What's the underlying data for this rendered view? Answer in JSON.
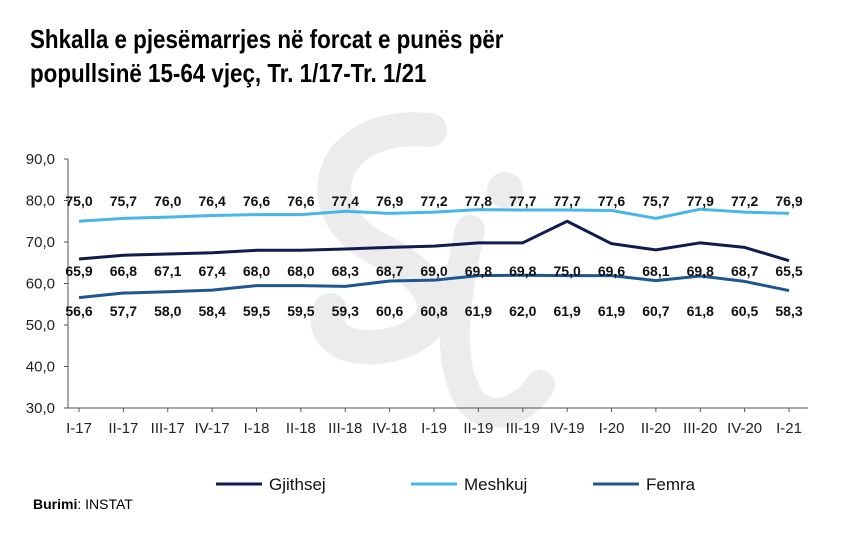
{
  "title_line1": "Shkalla e pjesëmarrjes në forcat e punës për",
  "title_line2": "popullsinë 15-64 vjeç, Tr. 1/17-Tr. 1/21",
  "source_label": "Burimi",
  "source_value": ": INSTAT",
  "chart_data": {
    "type": "line",
    "categories": [
      "I-17",
      "II-17",
      "III-17",
      "IV-17",
      "I-18",
      "II-18",
      "III-18",
      "IV-18",
      "I-19",
      "II-19",
      "III-19",
      "IV-19",
      "I-20",
      "II-20",
      "III-20",
      "IV-20",
      "I-21"
    ],
    "y_ticks": [
      "30,0",
      "40,0",
      "50,0",
      "60,0",
      "70,0",
      "80,0",
      "90,0"
    ],
    "ylim": [
      30,
      90
    ],
    "grid": false,
    "legend_position": "bottom",
    "series": [
      {
        "name": "Gjithsej",
        "color": "#0f1c4d",
        "values": [
          65.9,
          66.8,
          67.1,
          67.4,
          68.0,
          68.0,
          68.3,
          68.7,
          69.0,
          69.8,
          69.8,
          75.0,
          69.6,
          68.1,
          69.8,
          68.7,
          65.5
        ],
        "labels": [
          "65,9",
          "66,8",
          "67,1",
          "67,4",
          "68,0",
          "68,0",
          "68,3",
          "68,7",
          "69,0",
          "69,8",
          "69,8",
          "75,0",
          "69,6",
          "68,1",
          "69,8",
          "68,7",
          "65,5"
        ]
      },
      {
        "name": "Meshkuj",
        "color": "#48b7e8",
        "values": [
          75.0,
          75.7,
          76.0,
          76.4,
          76.6,
          76.6,
          77.4,
          76.9,
          77.2,
          77.8,
          77.7,
          77.7,
          77.6,
          75.7,
          77.9,
          77.2,
          76.9
        ],
        "labels": [
          "75,0",
          "75,7",
          "76,0",
          "76,4",
          "76,6",
          "76,6",
          "77,4",
          "76,9",
          "77,2",
          "77,8",
          "77,7",
          "77,7",
          "77,6",
          "75,7",
          "77,9",
          "77,2",
          "76,9"
        ]
      },
      {
        "name": "Femra",
        "color": "#1f5591",
        "values": [
          56.6,
          57.7,
          58.0,
          58.4,
          59.5,
          59.5,
          59.3,
          60.6,
          60.8,
          61.9,
          62.0,
          61.9,
          61.9,
          60.7,
          61.8,
          60.5,
          58.3
        ],
        "labels": [
          "56,6",
          "57,7",
          "58,0",
          "58,4",
          "59,5",
          "59,5",
          "59,3",
          "60,6",
          "60,8",
          "61,9",
          "62,0",
          "61,9",
          "61,9",
          "60,7",
          "61,8",
          "60,5",
          "58,3"
        ]
      }
    ]
  }
}
